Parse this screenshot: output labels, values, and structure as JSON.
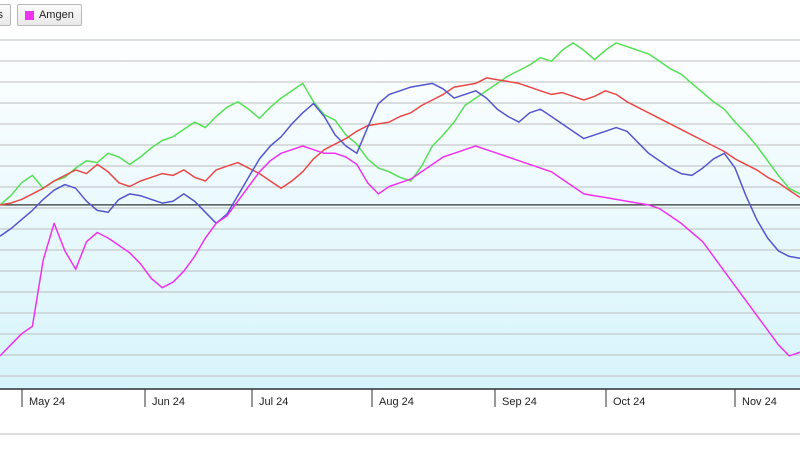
{
  "chart_data": {
    "type": "line",
    "x_ticks": [
      "May 24",
      "Jun 24",
      "Jul 24",
      "Aug 24",
      "Sep 24",
      "Oct 24",
      "Nov 24"
    ],
    "reference_line": 0,
    "ylim": [
      -100,
      95
    ],
    "series": [
      {
        "name": "",
        "color": "#55e055",
        "values": [
          0,
          5,
          12,
          16,
          9,
          13,
          15,
          20,
          24,
          23,
          28,
          26,
          22,
          26,
          31,
          35,
          37,
          41,
          45,
          42,
          48,
          53,
          56,
          52,
          47,
          53,
          58,
          62,
          66,
          56,
          49,
          46,
          38,
          33,
          25,
          20,
          18,
          15,
          13,
          21,
          32,
          38,
          45,
          54,
          58,
          62,
          66,
          70,
          73,
          76,
          80,
          78,
          84,
          88,
          84,
          79,
          84,
          88,
          86,
          84,
          82,
          78,
          74,
          71,
          66,
          61,
          56,
          52,
          45,
          39,
          32,
          24,
          16,
          9,
          6
        ]
      },
      {
        "name": "",
        "color": "#e84848",
        "values": [
          0,
          1,
          3,
          6,
          9,
          13,
          16,
          19,
          17,
          22,
          18,
          12,
          10,
          13,
          15,
          17,
          16,
          19,
          15,
          13,
          19,
          21,
          23,
          20,
          17,
          13,
          9,
          13,
          18,
          25,
          30,
          33,
          36,
          40,
          43,
          44,
          45,
          48,
          50,
          54,
          57,
          60,
          64,
          65,
          66,
          69,
          68,
          67,
          66,
          64,
          62,
          60,
          61,
          59,
          57,
          59,
          62,
          60,
          56,
          53,
          50,
          47,
          44,
          41,
          38,
          35,
          32,
          29,
          25,
          22,
          19,
          15,
          12,
          8,
          4
        ]
      },
      {
        "name": "",
        "color": "#5555cc",
        "values": [
          -17,
          -13,
          -8,
          -3,
          3,
          8,
          11,
          9,
          2,
          -3,
          -4,
          3,
          6,
          5,
          3,
          1,
          2,
          6,
          2,
          -4,
          -10,
          -5,
          5,
          15,
          25,
          32,
          37,
          44,
          50,
          55,
          48,
          38,
          32,
          28,
          42,
          55,
          60,
          62,
          64,
          65,
          66,
          63,
          58,
          60,
          62,
          58,
          52,
          48,
          45,
          50,
          52,
          48,
          44,
          40,
          36,
          38,
          40,
          42,
          40,
          34,
          28,
          24,
          20,
          17,
          16,
          20,
          25,
          28,
          20,
          5,
          -8,
          -18,
          -25,
          -28,
          -29
        ]
      },
      {
        "name": "Amgen",
        "color": "#ee33ee",
        "values": [
          -82,
          -76,
          -70,
          -66,
          -30,
          -10,
          -25,
          -35,
          -20,
          -15,
          -18,
          -22,
          -26,
          -32,
          -40,
          -45,
          -42,
          -36,
          -28,
          -18,
          -10,
          -6,
          2,
          10,
          18,
          24,
          28,
          30,
          32,
          30,
          28,
          28,
          26,
          22,
          12,
          6,
          10,
          12,
          14,
          18,
          22,
          26,
          28,
          30,
          32,
          30,
          28,
          26,
          24,
          22,
          20,
          18,
          14,
          10,
          6,
          5,
          4,
          3,
          2,
          1,
          0,
          -2,
          -6,
          -10,
          -15,
          -20,
          -28,
          -36,
          -44,
          -52,
          -60,
          -68,
          -76,
          -82,
          -80
        ]
      }
    ]
  },
  "legend": {
    "items": [
      {
        "label": "ls",
        "color": "#55e055"
      },
      {
        "label": "Amgen",
        "color": "#ee33ee"
      }
    ]
  }
}
